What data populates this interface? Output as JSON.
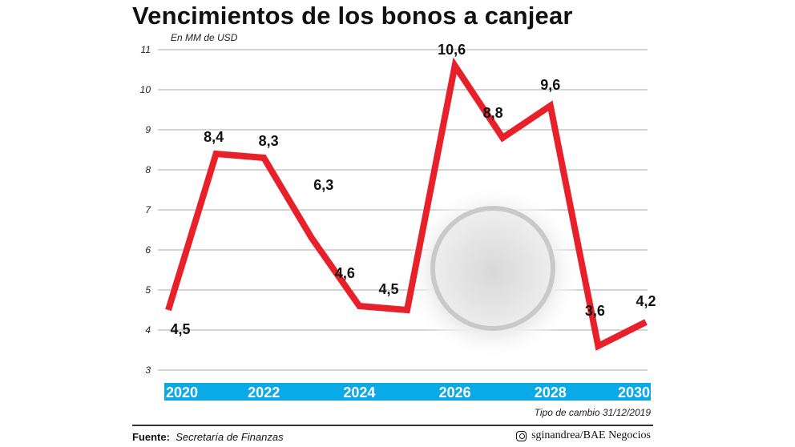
{
  "chart_data": {
    "type": "line",
    "title": "Vencimientos de los bonos a canjear",
    "ylabel": "En MM de USD",
    "x": [
      2020,
      2021,
      2022,
      2023,
      2024,
      2025,
      2026,
      2027,
      2028,
      2029,
      2030
    ],
    "values": [
      4.5,
      8.4,
      8.3,
      6.3,
      4.6,
      4.5,
      10.6,
      8.8,
      9.6,
      3.6,
      4.2
    ],
    "data_labels": [
      "4,5",
      "8,4",
      "8,3",
      "6,3",
      "4,6",
      "4,5",
      "10,6",
      "8,8",
      "9,6",
      "3,6",
      "4,2"
    ],
    "x_tick_labels": [
      "2020",
      "2022",
      "2024",
      "2026",
      "2028",
      "2030"
    ],
    "x_ticks": [
      2020,
      2022,
      2024,
      2026,
      2028,
      2030
    ],
    "y_ticks": [
      3,
      4,
      5,
      6,
      7,
      8,
      9,
      10,
      11
    ],
    "ylim": [
      3,
      11
    ],
    "xlim": [
      2020,
      2030
    ],
    "grid": true,
    "colors": {
      "line": "#e8202a",
      "axis_band": "#0aaae8",
      "grid": "#aaaaaa"
    }
  },
  "note": "Tipo de cambio 31/12/2019",
  "footer": {
    "source_label": "Fuente:",
    "source_value": "Secretaría de Finanzas",
    "credit_icon": "instagram-icon",
    "credit": "sginandrea/BAE Negocios"
  }
}
